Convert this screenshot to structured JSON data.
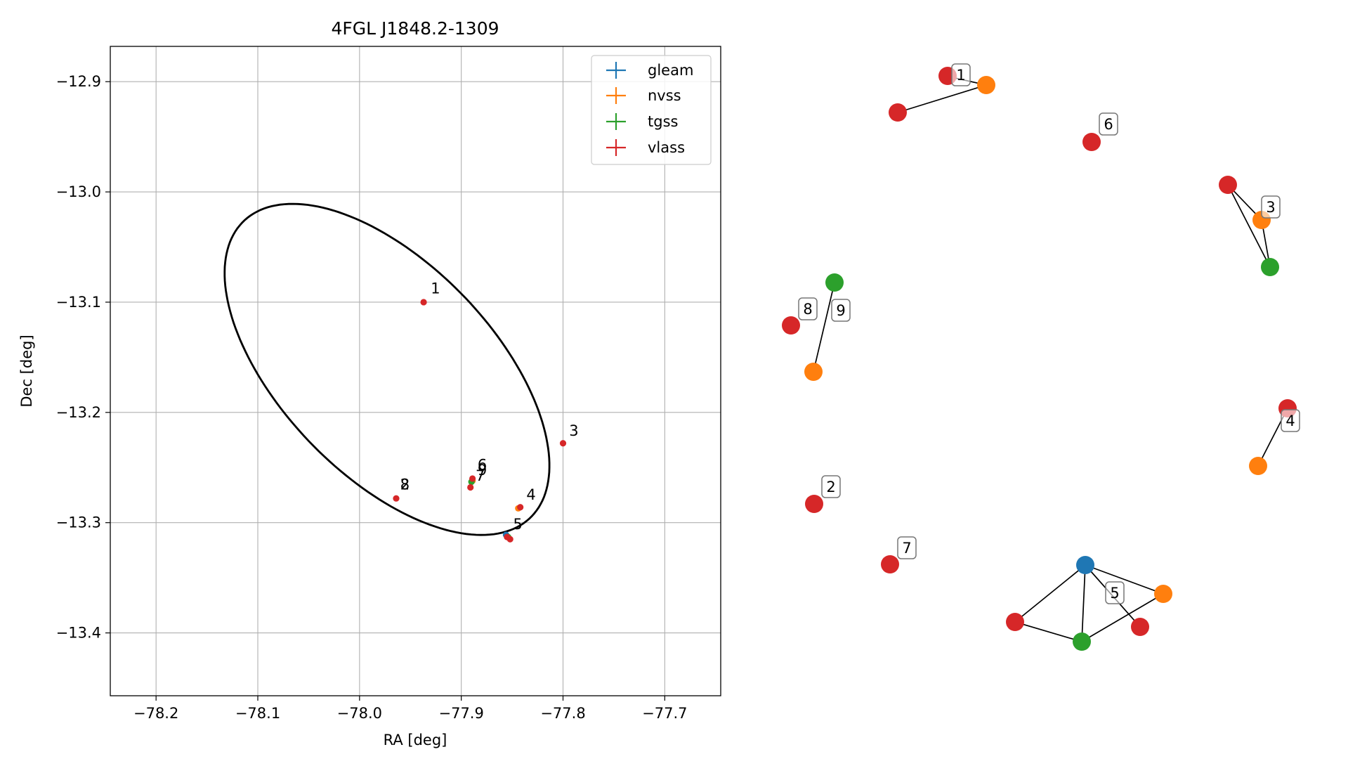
{
  "colors": {
    "gleam": "#1f77b4",
    "nvss": "#ff7f0e",
    "tgss": "#2ca02c",
    "vlass": "#d62728",
    "axis": "#000000",
    "grid": "#b0b0b0"
  },
  "chart_data": [
    {
      "type": "scatter",
      "title": "4FGL J1848.2-1309",
      "xlabel": "RA [deg]",
      "ylabel": "Dec [deg]",
      "xlim": [
        -78.245,
        -77.645
      ],
      "ylim": [
        -13.457,
        -12.868
      ],
      "xticks": [
        -78.2,
        -78.1,
        -78.0,
        -77.9,
        -77.8,
        -77.7
      ],
      "xtick_labels": [
        "−78.2",
        "−78.1",
        "−78.0",
        "−77.9",
        "−77.8",
        "−77.7"
      ],
      "yticks": [
        -12.9,
        -13.0,
        -13.1,
        -13.2,
        -13.3,
        -13.4
      ],
      "ytick_labels": [
        "−12.9",
        "−13.0",
        "−13.1",
        "−13.2",
        "−13.3",
        "−13.4"
      ],
      "grid": true,
      "legend_position": "top-right",
      "legend": [
        "gleam",
        "nvss",
        "tgss",
        "vlass"
      ],
      "ellipse": {
        "center": [
          -77.973,
          -13.161
        ],
        "semi_major": 0.195,
        "semi_minor": 0.1,
        "angle_deg": 138
      },
      "series": [
        {
          "name": "gleam",
          "points": [
            [
              -77.856,
              -13.311
            ]
          ]
        },
        {
          "name": "nvss",
          "points": [
            [
              -77.844,
              -13.287
            ],
            [
              -77.889,
              -13.262
            ]
          ]
        },
        {
          "name": "tgss",
          "points": [
            [
              -77.854,
              -13.313
            ],
            [
              -77.89,
              -13.263
            ]
          ]
        },
        {
          "name": "vlass",
          "points": [
            [
              -77.937,
              -13.1
            ],
            [
              -77.964,
              -13.278
            ],
            [
              -77.8,
              -13.228
            ],
            [
              -77.842,
              -13.286
            ],
            [
              -77.855,
              -13.313
            ],
            [
              -77.852,
              -13.315
            ],
            [
              -77.889,
              -13.26
            ],
            [
              -77.891,
              -13.268
            ]
          ]
        }
      ],
      "annotations": [
        {
          "text": "1",
          "x": -77.93,
          "y": -13.092
        },
        {
          "text": "2",
          "x": -77.96,
          "y": -13.27
        },
        {
          "text": "8",
          "x": -77.96,
          "y": -13.27
        },
        {
          "text": "3",
          "x": -77.794,
          "y": -13.221
        },
        {
          "text": "4",
          "x": -77.836,
          "y": -13.279
        },
        {
          "text": "5",
          "x": -77.849,
          "y": -13.306
        },
        {
          "text": "6",
          "x": -77.884,
          "y": -13.252
        },
        {
          "text": "9",
          "x": -77.884,
          "y": -13.257
        },
        {
          "text": "7",
          "x": -77.886,
          "y": -13.262
        }
      ]
    },
    {
      "type": "network",
      "nodes": [
        {
          "id": "a",
          "catalog": "vlass"
        },
        {
          "id": "b",
          "catalog": "nvss"
        },
        {
          "id": "c",
          "catalog": "vlass"
        },
        {
          "id": "d",
          "catalog": "vlass"
        },
        {
          "id": "e",
          "catalog": "vlass"
        },
        {
          "id": "f",
          "catalog": "nvss"
        },
        {
          "id": "g",
          "catalog": "tgss"
        },
        {
          "id": "h",
          "catalog": "tgss"
        },
        {
          "id": "i",
          "catalog": "vlass"
        },
        {
          "id": "j",
          "catalog": "nvss"
        },
        {
          "id": "k",
          "catalog": "vlass"
        },
        {
          "id": "l",
          "catalog": "nvss"
        },
        {
          "id": "m",
          "catalog": "vlass"
        },
        {
          "id": "n",
          "catalog": "vlass"
        },
        {
          "id": "o",
          "catalog": "gleam"
        },
        {
          "id": "p",
          "catalog": "nvss"
        },
        {
          "id": "q",
          "catalog": "vlass"
        },
        {
          "id": "r",
          "catalog": "vlass"
        },
        {
          "id": "s",
          "catalog": "tgss"
        }
      ],
      "edges": [
        [
          "a",
          "b"
        ],
        [
          "b",
          "c"
        ],
        [
          "e",
          "f"
        ],
        [
          "e",
          "g"
        ],
        [
          "f",
          "g"
        ],
        [
          "h",
          "j"
        ],
        [
          "k",
          "l"
        ],
        [
          "o",
          "p"
        ],
        [
          "o",
          "q"
        ],
        [
          "o",
          "r"
        ],
        [
          "o",
          "s"
        ],
        [
          "r",
          "s"
        ],
        [
          "s",
          "p"
        ]
      ],
      "labels": [
        "1",
        "6",
        "3",
        "8",
        "9",
        "4",
        "2",
        "7",
        "5"
      ]
    }
  ]
}
